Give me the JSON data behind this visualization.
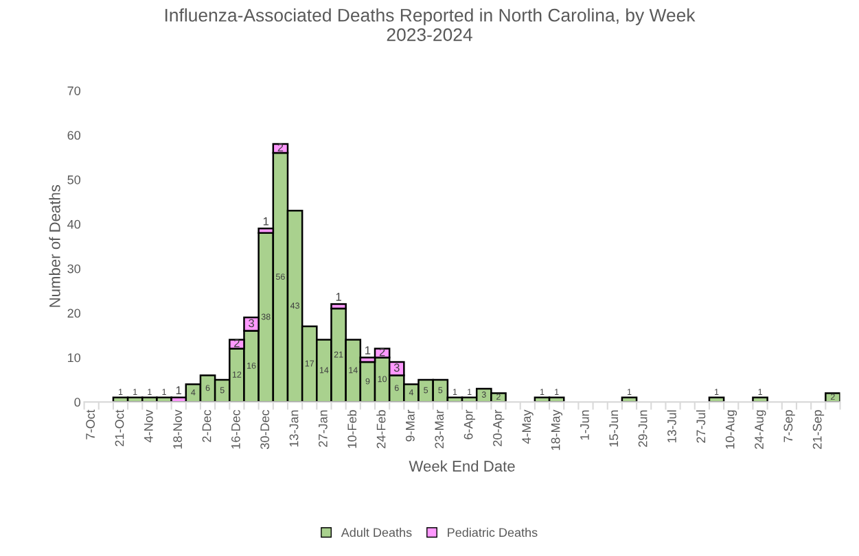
{
  "chart_data": {
    "type": "bar",
    "title": "Influenza-Associated Deaths Reported in North Carolina, by Week\n2023-2024",
    "xlabel": "Week End Date",
    "ylabel": "Number of Deaths",
    "categories": [
      "7-Oct",
      null,
      "21-Oct",
      null,
      "4-Nov",
      null,
      "18-Nov",
      null,
      "2-Dec",
      null,
      "16-Dec",
      null,
      "30-Dec",
      null,
      "13-Jan",
      null,
      "27-Jan",
      null,
      "10-Feb",
      null,
      "24-Feb",
      null,
      "9-Mar",
      null,
      "23-Mar",
      null,
      "6-Apr",
      null,
      "20-Apr",
      null,
      "4-May",
      null,
      "18-May",
      null,
      "1-Jun",
      null,
      "15-Jun",
      null,
      "29-Jun",
      null,
      "13-Jul",
      null,
      "27-Jul",
      null,
      "10-Aug",
      null,
      "24-Aug",
      null,
      "7-Sep",
      null,
      "21-Sep",
      null
    ],
    "series": [
      {
        "name": "Adult Deaths",
        "color": "#a9d18e",
        "values": [
          null,
          null,
          1,
          1,
          1,
          1,
          null,
          4,
          6,
          5,
          12,
          16,
          38,
          56,
          43,
          17,
          14,
          21,
          14,
          9,
          10,
          6,
          4,
          5,
          5,
          1,
          1,
          3,
          2,
          null,
          null,
          1,
          1,
          null,
          null,
          null,
          null,
          1,
          null,
          null,
          null,
          null,
          null,
          1,
          null,
          null,
          1,
          null,
          null,
          null,
          null,
          2
        ]
      },
      {
        "name": "Pediatric Deaths",
        "color": "#ff99ff",
        "values": [
          null,
          null,
          null,
          null,
          null,
          null,
          1,
          null,
          null,
          null,
          2,
          3,
          1,
          2,
          null,
          null,
          null,
          1,
          null,
          1,
          2,
          3,
          null,
          null,
          null,
          null,
          null,
          null,
          null,
          null,
          null,
          null,
          null,
          null,
          null,
          null,
          null,
          null,
          null,
          null,
          null,
          null,
          null,
          null,
          null,
          null,
          null,
          null,
          null,
          null,
          null,
          null
        ]
      }
    ],
    "stacked": true,
    "data_labels": true,
    "ylim": [
      0,
      70
    ],
    "yticks": [
      0,
      10,
      20,
      30,
      40,
      50,
      60,
      70
    ],
    "grid": false,
    "legend": "bottom"
  }
}
